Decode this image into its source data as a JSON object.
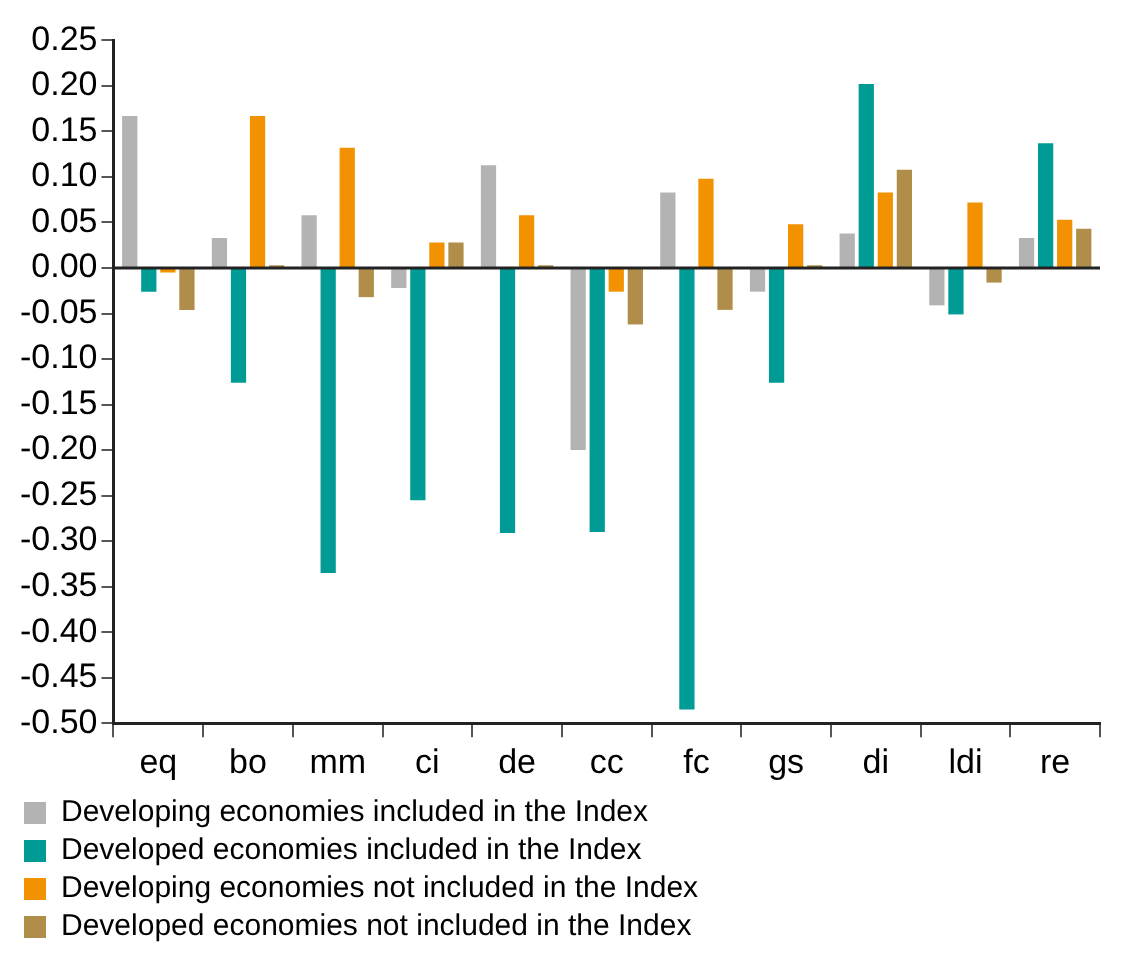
{
  "chart_data": {
    "type": "bar",
    "categories": [
      "eq",
      "bo",
      "mm",
      "ci",
      "de",
      "cc",
      "fc",
      "gs",
      "di",
      "ldi",
      "re"
    ],
    "series": [
      {
        "name": "Developing economies included in the Index",
        "color": "#b3b3b3",
        "values": [
          0.167,
          0.033,
          0.058,
          -0.022,
          0.113,
          -0.2,
          0.083,
          -0.026,
          0.038,
          -0.041,
          0.033
        ]
      },
      {
        "name": "Developed economies included in the Index",
        "color": "#009b94",
        "values": [
          -0.026,
          -0.126,
          -0.335,
          -0.255,
          -0.291,
          -0.29,
          -0.485,
          -0.126,
          0.202,
          -0.051,
          0.137
        ]
      },
      {
        "name": "Developing economies not included in the Index",
        "color": "#f39200",
        "values": [
          -0.005,
          0.167,
          0.132,
          0.028,
          0.058,
          -0.026,
          0.098,
          0.048,
          0.083,
          0.072,
          0.053
        ]
      },
      {
        "name": "Developed economies not included in the Index",
        "color": "#b08d48",
        "values": [
          -0.046,
          0.003,
          -0.032,
          0.028,
          0.003,
          -0.062,
          -0.046,
          0.003,
          0.108,
          -0.016,
          0.043
        ]
      }
    ],
    "ylim": [
      -0.5,
      0.25
    ],
    "yticks": [
      {
        "value": -0.5,
        "label": "-0.50"
      },
      {
        "value": -0.45,
        "label": "-0.45"
      },
      {
        "value": -0.4,
        "label": "-0.40"
      },
      {
        "value": -0.35,
        "label": "-0.35"
      },
      {
        "value": -0.3,
        "label": "-0.30"
      },
      {
        "value": -0.25,
        "label": "-0.25"
      },
      {
        "value": -0.2,
        "label": "-0.20"
      },
      {
        "value": -0.15,
        "label": "-0.15"
      },
      {
        "value": -0.1,
        "label": "-0.10"
      },
      {
        "value": -0.05,
        "label": "-0.05"
      },
      {
        "value": 0,
        "label": "0.00"
      },
      {
        "value": 0.05,
        "label": "0.05"
      },
      {
        "value": 0.1,
        "label": "0.10"
      },
      {
        "value": 0.15,
        "label": "0.15"
      },
      {
        "value": 0.2,
        "label": "0.20"
      },
      {
        "value": 0.25,
        "label": "0.25"
      }
    ],
    "ref_lines": [
      {
        "axis": "y",
        "value": 0,
        "color": "#222222"
      }
    ],
    "grid": false,
    "legend": "bottom"
  }
}
